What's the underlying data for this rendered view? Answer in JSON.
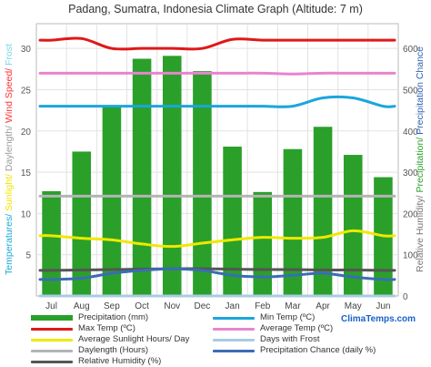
{
  "chart_data": {
    "type": "bar",
    "title": "Padang, Sumatra, Indonesia Climate Graph (Altitude: 7 m)",
    "categories": [
      "Jul",
      "Aug",
      "Sep",
      "Oct",
      "Nov",
      "Dec",
      "Jan",
      "Feb",
      "Mar",
      "Apr",
      "May",
      "Jun"
    ],
    "left_axis": {
      "ticks": [
        "5",
        "10",
        "15",
        "20",
        "25",
        "30"
      ],
      "label_parts": [
        {
          "text": "Temperatures/ ",
          "color": "#19a9d6"
        },
        {
          "text": "Sunlight/ ",
          "color": "#f2e600"
        },
        {
          "text": "Daylength/ ",
          "color": "#9a9a9a"
        },
        {
          "text": "Wind Speed/ ",
          "color": "#ff3030"
        },
        {
          "text": "Frost",
          "color": "#7ad6e8"
        }
      ],
      "ylim": [
        0,
        33
      ]
    },
    "right_axis": {
      "ticks": [
        "0",
        "100",
        "200",
        "300",
        "400",
        "500",
        "600"
      ],
      "label_parts": [
        {
          "text": "Relative Humidity/ ",
          "color": "#777777"
        },
        {
          "text": "Precipitation/ ",
          "color": "#2ca02c"
        },
        {
          "text": "Precipitation Chance",
          "color": "#3060b0"
        }
      ],
      "ylim": [
        0,
        660
      ]
    },
    "series": [
      {
        "name": "Precipitation (mm)",
        "kind": "bar",
        "axis": "right",
        "color": "#2aa02a",
        "values": [
          254,
          350,
          460,
          575,
          582,
          545,
          362,
          252,
          356,
          410,
          342,
          288
        ]
      },
      {
        "name": "Max Temp (ºC)",
        "kind": "line",
        "axis": "left",
        "color": "#e01818",
        "values": [
          31.0,
          31.2,
          30.0,
          30.0,
          30.0,
          30.0,
          31.1,
          31.0,
          31.0,
          31.0,
          31.0,
          31.0
        ]
      },
      {
        "name": "Average Temp (ºC)",
        "kind": "line",
        "axis": "left",
        "color": "#e884d0",
        "values": [
          27.0,
          27.0,
          27.0,
          27.0,
          27.0,
          27.0,
          27.0,
          27.0,
          26.9,
          27.0,
          27.0,
          27.0
        ]
      },
      {
        "name": "Min Temp (ºC)",
        "kind": "line",
        "axis": "left",
        "color": "#1aa6dc",
        "values": [
          23.0,
          23.0,
          23.0,
          23.0,
          23.0,
          23.0,
          23.0,
          23.0,
          23.0,
          24.0,
          24.0,
          23.0
        ]
      },
      {
        "name": "Average Sunlight Hours/ Day",
        "kind": "line",
        "axis": "left",
        "color": "#f0e800",
        "values": [
          7.3,
          7.0,
          6.8,
          6.3,
          6.0,
          6.4,
          6.8,
          7.1,
          7.0,
          7.1,
          7.9,
          7.3
        ]
      },
      {
        "name": "Days with Frost",
        "kind": "line",
        "axis": "left",
        "color": "#a8cce0",
        "values": [
          0,
          0,
          0,
          0,
          0,
          0,
          0,
          0,
          0,
          0,
          0,
          0
        ]
      },
      {
        "name": "Daylength (Hours)",
        "kind": "line",
        "axis": "left",
        "color": "#b4b4b4",
        "values": [
          12.1,
          12.1,
          12.1,
          12.1,
          12.1,
          12.1,
          12.1,
          12.1,
          12.1,
          12.1,
          12.1,
          12.1
        ]
      },
      {
        "name": "Precipitation Chance (daily %)",
        "kind": "line",
        "axis": "right",
        "color": "#3a6db4",
        "values": [
          40,
          43,
          55,
          62,
          66,
          62,
          50,
          46,
          50,
          55,
          46,
          40
        ]
      },
      {
        "name": "Relative Humidity (%)",
        "kind": "line",
        "axis": "right",
        "color": "#555555",
        "values": [
          62,
          63,
          64,
          65,
          66,
          66,
          65,
          64,
          64,
          63,
          63,
          62
        ]
      }
    ],
    "grid": true,
    "legend": "bottom"
  },
  "brand": "ClimaTemps.com"
}
